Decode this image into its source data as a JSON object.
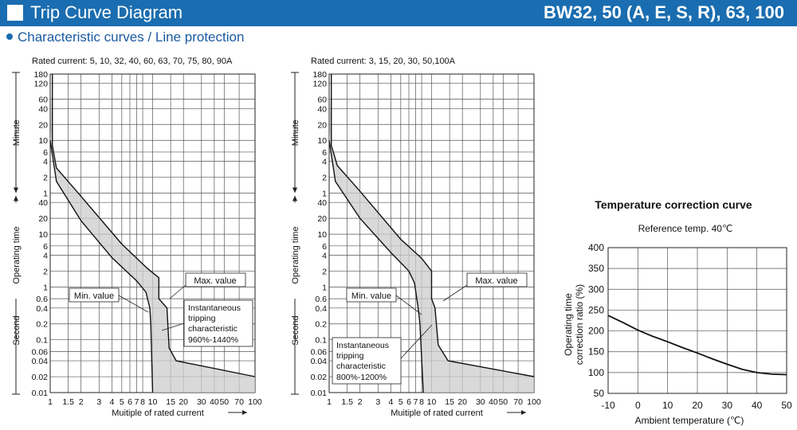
{
  "header": {
    "title": "Trip Curve Diagram",
    "model": "BW32, 50 (A, E, S, R), 63, 100"
  },
  "subtitle": "Characteristic curves / Line protection",
  "chart_data": [
    {
      "type": "line",
      "title": "Rated current: 5, 10, 32, 40, 60, 63, 70, 75, 80, 90A",
      "xlabel": "Muitiple of rated current",
      "ylabel": "Operating time",
      "x_scale": "log",
      "xlim": [
        1,
        100
      ],
      "x_ticks": [
        "1",
        "1.5",
        "2",
        "3",
        "4",
        "5",
        "6",
        "7",
        "8",
        "10",
        "15",
        "20",
        "30",
        "40",
        "50",
        "70",
        "100"
      ],
      "y_scale": "log",
      "y_ticks_minute": [
        "180",
        "120",
        "60",
        "40",
        "20",
        "10",
        "6",
        "4",
        "2",
        "1"
      ],
      "y_ticks_second": [
        "40",
        "20",
        "10",
        "6",
        "4",
        "2",
        "1",
        "0.6",
        "0.4",
        "0.2",
        "0.1",
        "0.06",
        "0.04",
        "0.02",
        "0.01"
      ],
      "y_unit_labels": [
        "Minute",
        "Second"
      ],
      "series": [
        {
          "name": "Max. value",
          "points": [
            [
              1.05,
              10800
            ],
            [
              1.05,
              480
            ],
            [
              1.15,
              180
            ],
            [
              2,
              52
            ],
            [
              5,
              6.5
            ],
            [
              9,
              2.2
            ],
            [
              11.5,
              1.5
            ],
            [
              11.5,
              0.6
            ],
            [
              13.8,
              0.4
            ],
            [
              14.5,
              0.07
            ],
            [
              17,
              0.04
            ],
            [
              100,
              0.02
            ]
          ]
        },
        {
          "name": "Min. value",
          "points": [
            [
              1.0,
              600
            ],
            [
              1.15,
              100
            ],
            [
              2,
              18
            ],
            [
              4,
              3.6
            ],
            [
              7,
              1.3
            ],
            [
              8.6,
              0.8
            ],
            [
              9.4,
              0.4
            ],
            [
              9.6,
              0.2
            ],
            [
              10,
              0.01
            ]
          ]
        }
      ],
      "annotations": [
        "Max. value",
        "Min. value",
        "Instantaneous",
        "tripping",
        "characteristic",
        "960%-1440%"
      ]
    },
    {
      "type": "line",
      "title": "Rated current: 3, 15, 20, 30, 50,100A",
      "xlabel": "Muitiple of rated current",
      "ylabel": "Operating time",
      "x_scale": "log",
      "xlim": [
        1,
        100
      ],
      "x_ticks": [
        "1",
        "1.5",
        "2",
        "3",
        "4",
        "5",
        "6",
        "7",
        "8",
        "10",
        "15",
        "20",
        "30",
        "40",
        "50",
        "70",
        "100"
      ],
      "y_scale": "log",
      "y_ticks_minute": [
        "180",
        "120",
        "60",
        "40",
        "20",
        "10",
        "6",
        "4",
        "2",
        "1"
      ],
      "y_ticks_second": [
        "40",
        "20",
        "10",
        "6",
        "4",
        "2",
        "1",
        "0.6",
        "0.4",
        "0.2",
        "0.1",
        "0.06",
        "0.04",
        "0.02",
        "0.01"
      ],
      "y_unit_labels": [
        "Minute",
        "Second"
      ],
      "series": [
        {
          "name": "Max. value",
          "points": [
            [
              1.05,
              10800
            ],
            [
              1.05,
              480
            ],
            [
              1.2,
              200
            ],
            [
              2,
              65
            ],
            [
              5,
              8
            ],
            [
              8,
              3.5
            ],
            [
              10,
              2
            ],
            [
              10,
              0.6
            ],
            [
              10.8,
              0.4
            ],
            [
              11.6,
              0.08
            ],
            [
              14.5,
              0.04
            ],
            [
              100,
              0.02
            ]
          ]
        },
        {
          "name": "Min. value",
          "points": [
            [
              1.0,
              600
            ],
            [
              1.15,
              100
            ],
            [
              2,
              20
            ],
            [
              4,
              4.5
            ],
            [
              6,
              2
            ],
            [
              6.8,
              1.2
            ],
            [
              7.4,
              0.4
            ],
            [
              7.7,
              0.2
            ],
            [
              8.3,
              0.01
            ]
          ]
        }
      ],
      "annotations": [
        "Max. value",
        "Min. value",
        "Instantaneous",
        "tripping",
        "characteristic",
        "800%-1200%"
      ]
    },
    {
      "type": "line",
      "title": "Temperature correction curve",
      "subtitle": "Reference temp. 40℃",
      "xlabel": "Ambient temperature (℃)",
      "ylabel": "Operating time correction ratio (%)",
      "xlim": [
        -10,
        50
      ],
      "ylim": [
        50,
        400
      ],
      "x_ticks": [
        "-10",
        "0",
        "10",
        "20",
        "30",
        "40",
        "50"
      ],
      "y_ticks": [
        "50",
        "100",
        "150",
        "200",
        "250",
        "300",
        "350",
        "400"
      ],
      "grid": true,
      "x": [
        -10,
        -5,
        0,
        5,
        10,
        15,
        20,
        25,
        30,
        35,
        40,
        45,
        50
      ],
      "y": [
        237,
        220,
        202,
        187,
        174,
        160,
        147,
        133,
        120,
        108,
        100,
        96,
        95
      ]
    }
  ]
}
